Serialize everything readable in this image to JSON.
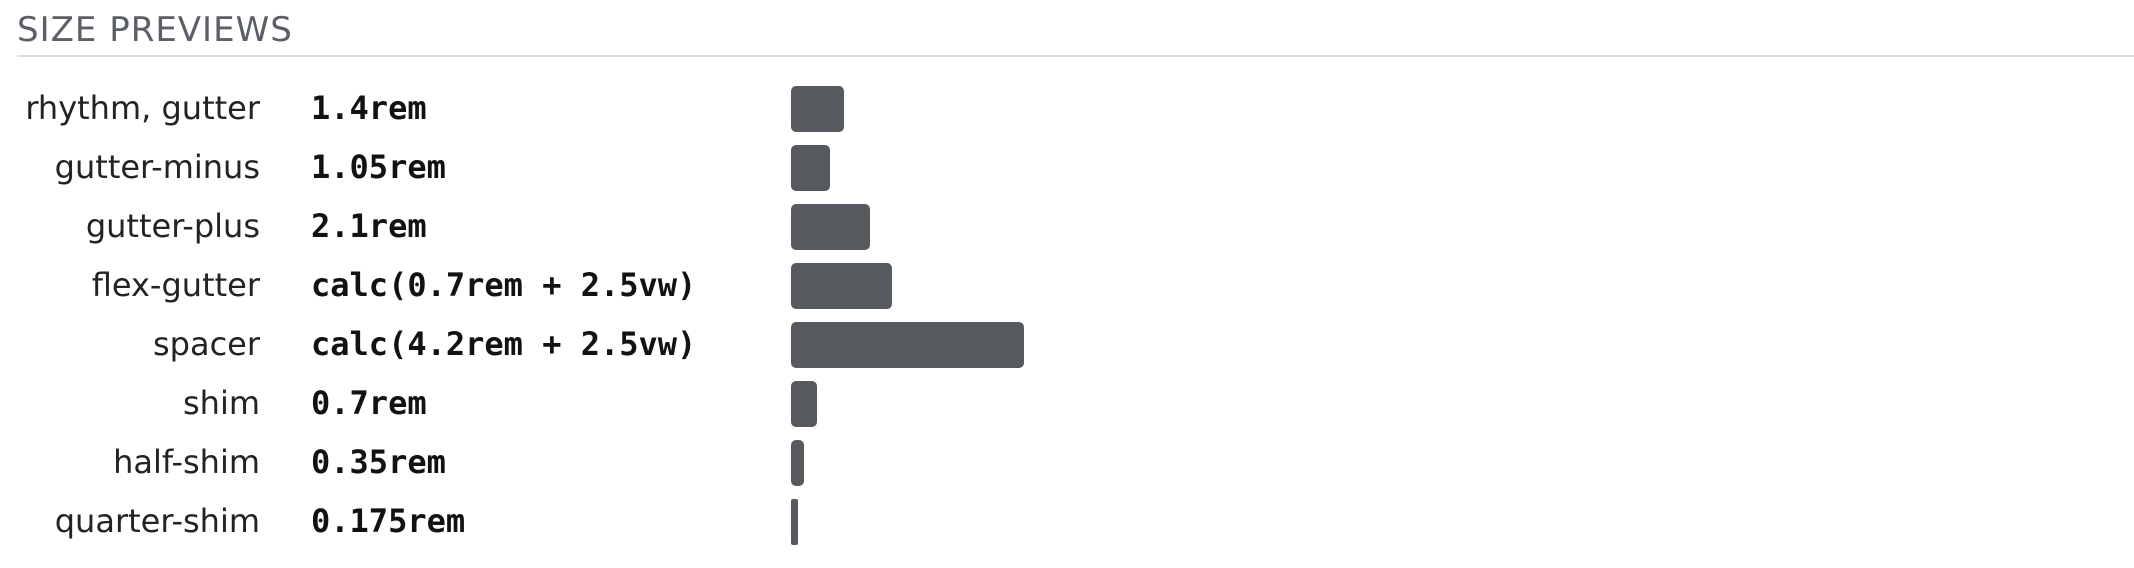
{
  "section": {
    "title": "SIZE PREVIEWS"
  },
  "colors": {
    "swatch": "#565a5f",
    "divider": "#dcdde0",
    "title": "#5b5f66"
  },
  "sizes": [
    {
      "label": "rhythm, gutter",
      "value": "1.4rem",
      "rem": 1.4
    },
    {
      "label": "gutter-minus",
      "value": "1.05rem",
      "rem": 1.05
    },
    {
      "label": "gutter-plus",
      "value": "2.1rem",
      "rem": 2.1
    },
    {
      "label": "flex-gutter",
      "value": "calc(0.7rem + 2.5vw)",
      "rem": 2.7
    },
    {
      "label": "spacer",
      "value": "calc(4.2rem + 2.5vw)",
      "rem": 6.2
    },
    {
      "label": "shim",
      "value": "0.7rem",
      "rem": 0.7
    },
    {
      "label": "half-shim",
      "value": "0.35rem",
      "rem": 0.35
    },
    {
      "label": "quarter-shim",
      "value": "0.175rem",
      "rem": 0.175
    }
  ]
}
